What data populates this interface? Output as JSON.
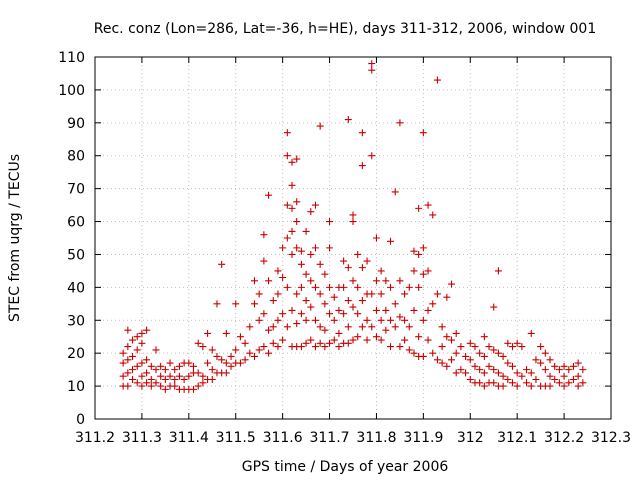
{
  "chart_data": {
    "type": "scatter",
    "title": "Rec. conz (Lon=286, Lat=-36, h=HE), days 311-312, 2006, window 001",
    "xlabel": "GPS time / Days of year 2006",
    "ylabel": "STEC from uqrg / TECUs",
    "xlim": [
      311.2,
      312.3
    ],
    "ylim": [
      0,
      110
    ],
    "xticks": [
      "311.2",
      "311.3",
      "311.4",
      "311.5",
      "311.6",
      "311.7",
      "311.8",
      "311.9",
      "312",
      "312.1",
      "312.2",
      "312.3"
    ],
    "yticks": [
      "0",
      "10",
      "20",
      "30",
      "40",
      "50",
      "60",
      "70",
      "80",
      "90",
      "100",
      "110"
    ],
    "grid": true,
    "marker": "+",
    "color": "#cc0000",
    "points": [
      [
        311.26,
        20
      ],
      [
        311.26,
        17
      ],
      [
        311.26,
        13
      ],
      [
        311.26,
        10
      ],
      [
        311.27,
        27
      ],
      [
        311.27,
        22
      ],
      [
        311.27,
        18
      ],
      [
        311.27,
        14
      ],
      [
        311.27,
        10
      ],
      [
        311.28,
        24
      ],
      [
        311.28,
        19
      ],
      [
        311.28,
        15
      ],
      [
        311.28,
        12
      ],
      [
        311.29,
        25
      ],
      [
        311.29,
        21
      ],
      [
        311.29,
        16
      ],
      [
        311.29,
        11
      ],
      [
        311.3,
        26
      ],
      [
        311.3,
        23
      ],
      [
        311.3,
        17
      ],
      [
        311.3,
        13
      ],
      [
        311.3,
        10
      ],
      [
        311.31,
        27
      ],
      [
        311.31,
        18
      ],
      [
        311.31,
        14
      ],
      [
        311.31,
        11
      ],
      [
        311.32,
        16
      ],
      [
        311.32,
        12
      ],
      [
        311.32,
        10
      ],
      [
        311.33,
        21
      ],
      [
        311.33,
        15
      ],
      [
        311.33,
        11
      ],
      [
        311.34,
        16
      ],
      [
        311.34,
        13
      ],
      [
        311.34,
        10
      ],
      [
        311.35,
        15
      ],
      [
        311.35,
        12
      ],
      [
        311.35,
        9
      ],
      [
        311.36,
        17
      ],
      [
        311.36,
        13
      ],
      [
        311.36,
        10
      ],
      [
        311.37,
        15
      ],
      [
        311.37,
        12
      ],
      [
        311.37,
        10
      ],
      [
        311.38,
        16
      ],
      [
        311.38,
        13
      ],
      [
        311.38,
        9
      ],
      [
        311.39,
        17
      ],
      [
        311.39,
        12
      ],
      [
        311.39,
        9
      ],
      [
        311.4,
        17
      ],
      [
        311.4,
        13
      ],
      [
        311.4,
        9
      ],
      [
        311.41,
        16
      ],
      [
        311.41,
        14
      ],
      [
        311.41,
        9
      ],
      [
        311.42,
        23
      ],
      [
        311.42,
        14
      ],
      [
        311.42,
        10
      ],
      [
        311.43,
        22
      ],
      [
        311.43,
        13
      ],
      [
        311.43,
        11
      ],
      [
        311.44,
        26
      ],
      [
        311.44,
        17
      ],
      [
        311.44,
        12
      ],
      [
        311.45,
        21
      ],
      [
        311.45,
        15
      ],
      [
        311.45,
        12
      ],
      [
        311.46,
        35
      ],
      [
        311.46,
        19
      ],
      [
        311.46,
        14
      ],
      [
        311.47,
        47
      ],
      [
        311.47,
        18
      ],
      [
        311.47,
        14
      ],
      [
        311.48,
        26
      ],
      [
        311.48,
        17
      ],
      [
        311.48,
        14
      ],
      [
        311.49,
        19
      ],
      [
        311.49,
        16
      ],
      [
        311.5,
        35
      ],
      [
        311.5,
        21
      ],
      [
        311.5,
        17
      ],
      [
        311.51,
        25
      ],
      [
        311.51,
        17
      ],
      [
        311.52,
        23
      ],
      [
        311.52,
        18
      ],
      [
        311.53,
        28
      ],
      [
        311.53,
        20
      ],
      [
        311.54,
        42
      ],
      [
        311.54,
        35
      ],
      [
        311.54,
        19
      ],
      [
        311.55,
        38
      ],
      [
        311.55,
        30
      ],
      [
        311.55,
        21
      ],
      [
        311.56,
        56
      ],
      [
        311.56,
        48
      ],
      [
        311.56,
        32
      ],
      [
        311.56,
        22
      ],
      [
        311.57,
        68
      ],
      [
        311.57,
        42
      ],
      [
        311.57,
        27
      ],
      [
        311.57,
        20
      ],
      [
        311.58,
        36
      ],
      [
        311.58,
        28
      ],
      [
        311.58,
        23
      ],
      [
        311.59,
        45
      ],
      [
        311.59,
        38
      ],
      [
        311.59,
        30
      ],
      [
        311.59,
        22
      ],
      [
        311.6,
        52
      ],
      [
        311.6,
        43
      ],
      [
        311.6,
        32
      ],
      [
        311.6,
        24
      ],
      [
        311.61,
        87
      ],
      [
        311.61,
        80
      ],
      [
        311.61,
        65
      ],
      [
        311.61,
        55
      ],
      [
        311.61,
        40
      ],
      [
        311.61,
        28
      ],
      [
        311.62,
        78
      ],
      [
        311.62,
        71
      ],
      [
        311.62,
        64
      ],
      [
        311.62,
        57
      ],
      [
        311.62,
        50
      ],
      [
        311.62,
        33
      ],
      [
        311.62,
        22
      ],
      [
        311.63,
        79
      ],
      [
        311.63,
        66
      ],
      [
        311.63,
        60
      ],
      [
        311.63,
        52
      ],
      [
        311.63,
        38
      ],
      [
        311.63,
        29
      ],
      [
        311.63,
        22
      ],
      [
        311.64,
        51
      ],
      [
        311.64,
        47
      ],
      [
        311.64,
        40
      ],
      [
        311.64,
        32
      ],
      [
        311.64,
        22
      ],
      [
        311.65,
        57
      ],
      [
        311.65,
        44
      ],
      [
        311.65,
        36
      ],
      [
        311.65,
        30
      ],
      [
        311.65,
        23
      ],
      [
        311.66,
        63
      ],
      [
        311.66,
        50
      ],
      [
        311.66,
        42
      ],
      [
        311.66,
        34
      ],
      [
        311.66,
        24
      ],
      [
        311.67,
        65
      ],
      [
        311.67,
        52
      ],
      [
        311.67,
        40
      ],
      [
        311.67,
        30
      ],
      [
        311.67,
        22
      ],
      [
        311.68,
        89
      ],
      [
        311.68,
        47
      ],
      [
        311.68,
        38
      ],
      [
        311.68,
        28
      ],
      [
        311.68,
        23
      ],
      [
        311.69,
        44
      ],
      [
        311.69,
        35
      ],
      [
        311.69,
        27
      ],
      [
        311.69,
        22
      ],
      [
        311.7,
        60
      ],
      [
        311.7,
        52
      ],
      [
        311.7,
        40
      ],
      [
        311.7,
        32
      ],
      [
        311.7,
        23
      ],
      [
        311.71,
        37
      ],
      [
        311.71,
        30
      ],
      [
        311.71,
        24
      ],
      [
        311.72,
        40
      ],
      [
        311.72,
        33
      ],
      [
        311.72,
        26
      ],
      [
        311.72,
        22
      ],
      [
        311.73,
        48
      ],
      [
        311.73,
        40
      ],
      [
        311.73,
        32
      ],
      [
        311.73,
        23
      ],
      [
        311.74,
        91
      ],
      [
        311.74,
        46
      ],
      [
        311.74,
        36
      ],
      [
        311.74,
        28
      ],
      [
        311.74,
        23
      ],
      [
        311.75,
        62
      ],
      [
        311.75,
        60
      ],
      [
        311.75,
        42
      ],
      [
        311.75,
        34
      ],
      [
        311.75,
        24
      ],
      [
        311.76,
        50
      ],
      [
        311.76,
        40
      ],
      [
        311.76,
        32
      ],
      [
        311.76,
        25
      ],
      [
        311.77,
        87
      ],
      [
        311.77,
        77
      ],
      [
        311.77,
        46
      ],
      [
        311.77,
        36
      ],
      [
        311.77,
        28
      ],
      [
        311.78,
        48
      ],
      [
        311.78,
        38
      ],
      [
        311.78,
        30
      ],
      [
        311.78,
        24
      ],
      [
        311.79,
        108
      ],
      [
        311.79,
        106
      ],
      [
        311.79,
        80
      ],
      [
        311.79,
        38
      ],
      [
        311.79,
        28
      ],
      [
        311.8,
        55
      ],
      [
        311.8,
        42
      ],
      [
        311.8,
        33
      ],
      [
        311.8,
        25
      ],
      [
        311.81,
        45
      ],
      [
        311.81,
        38
      ],
      [
        311.81,
        30
      ],
      [
        311.81,
        24
      ],
      [
        311.82,
        42
      ],
      [
        311.82,
        33
      ],
      [
        311.82,
        27
      ],
      [
        311.83,
        54
      ],
      [
        311.83,
        40
      ],
      [
        311.83,
        30
      ],
      [
        311.83,
        22
      ],
      [
        311.84,
        69
      ],
      [
        311.84,
        35
      ],
      [
        311.84,
        28
      ],
      [
        311.85,
        90
      ],
      [
        311.85,
        42
      ],
      [
        311.85,
        31
      ],
      [
        311.85,
        22
      ],
      [
        311.86,
        38
      ],
      [
        311.86,
        30
      ],
      [
        311.86,
        24
      ],
      [
        311.87,
        40
      ],
      [
        311.87,
        28
      ],
      [
        311.87,
        21
      ],
      [
        311.88,
        51
      ],
      [
        311.88,
        45
      ],
      [
        311.88,
        33
      ],
      [
        311.88,
        20
      ],
      [
        311.89,
        64
      ],
      [
        311.89,
        50
      ],
      [
        311.89,
        40
      ],
      [
        311.89,
        25
      ],
      [
        311.89,
        19
      ],
      [
        311.9,
        87
      ],
      [
        311.9,
        52
      ],
      [
        311.9,
        44
      ],
      [
        311.9,
        30
      ],
      [
        311.9,
        19
      ],
      [
        311.91,
        65
      ],
      [
        311.91,
        45
      ],
      [
        311.91,
        33
      ],
      [
        311.91,
        24
      ],
      [
        311.92,
        62
      ],
      [
        311.92,
        35
      ],
      [
        311.92,
        20
      ],
      [
        311.93,
        103
      ],
      [
        311.93,
        38
      ],
      [
        311.93,
        18
      ],
      [
        311.94,
        28
      ],
      [
        311.94,
        22
      ],
      [
        311.94,
        17
      ],
      [
        311.95,
        37
      ],
      [
        311.95,
        25
      ],
      [
        311.95,
        16
      ],
      [
        311.96,
        41
      ],
      [
        311.96,
        24
      ],
      [
        311.96,
        18
      ],
      [
        311.97,
        26
      ],
      [
        311.97,
        20
      ],
      [
        311.97,
        14
      ],
      [
        311.98,
        22
      ],
      [
        311.98,
        15
      ],
      [
        311.99,
        19
      ],
      [
        311.99,
        14
      ],
      [
        312.0,
        23
      ],
      [
        312.0,
        18
      ],
      [
        312.0,
        12
      ],
      [
        312.01,
        22
      ],
      [
        312.01,
        16
      ],
      [
        312.01,
        11
      ],
      [
        312.02,
        20
      ],
      [
        312.02,
        15
      ],
      [
        312.02,
        11
      ],
      [
        312.03,
        25
      ],
      [
        312.03,
        19
      ],
      [
        312.03,
        14
      ],
      [
        312.03,
        10
      ],
      [
        312.04,
        22
      ],
      [
        312.04,
        16
      ],
      [
        312.04,
        11
      ],
      [
        312.05,
        34
      ],
      [
        312.05,
        21
      ],
      [
        312.05,
        15
      ],
      [
        312.05,
        11
      ],
      [
        312.06,
        45
      ],
      [
        312.06,
        20
      ],
      [
        312.06,
        14
      ],
      [
        312.06,
        10
      ],
      [
        312.07,
        19
      ],
      [
        312.07,
        13
      ],
      [
        312.07,
        10
      ],
      [
        312.08,
        23
      ],
      [
        312.08,
        17
      ],
      [
        312.08,
        12
      ],
      [
        312.09,
        22
      ],
      [
        312.09,
        16
      ],
      [
        312.09,
        11
      ],
      [
        312.1,
        23
      ],
      [
        312.1,
        14
      ],
      [
        312.1,
        10
      ],
      [
        312.11,
        22
      ],
      [
        312.11,
        13
      ],
      [
        312.12,
        15
      ],
      [
        312.12,
        11
      ],
      [
        312.13,
        26
      ],
      [
        312.13,
        14
      ],
      [
        312.13,
        10
      ],
      [
        312.14,
        18
      ],
      [
        312.14,
        12
      ],
      [
        312.15,
        22
      ],
      [
        312.15,
        17
      ],
      [
        312.15,
        10
      ],
      [
        312.16,
        20
      ],
      [
        312.16,
        15
      ],
      [
        312.16,
        10
      ],
      [
        312.17,
        18
      ],
      [
        312.17,
        13
      ],
      [
        312.17,
        10
      ],
      [
        312.18,
        16
      ],
      [
        312.18,
        12
      ],
      [
        312.19,
        15
      ],
      [
        312.19,
        11
      ],
      [
        312.2,
        16
      ],
      [
        312.2,
        13
      ],
      [
        312.2,
        10
      ],
      [
        312.21,
        15
      ],
      [
        312.21,
        11
      ],
      [
        312.22,
        16
      ],
      [
        312.22,
        12
      ],
      [
        312.23,
        17
      ],
      [
        312.23,
        13
      ],
      [
        312.23,
        10
      ],
      [
        312.24,
        15
      ],
      [
        312.24,
        11
      ]
    ]
  }
}
